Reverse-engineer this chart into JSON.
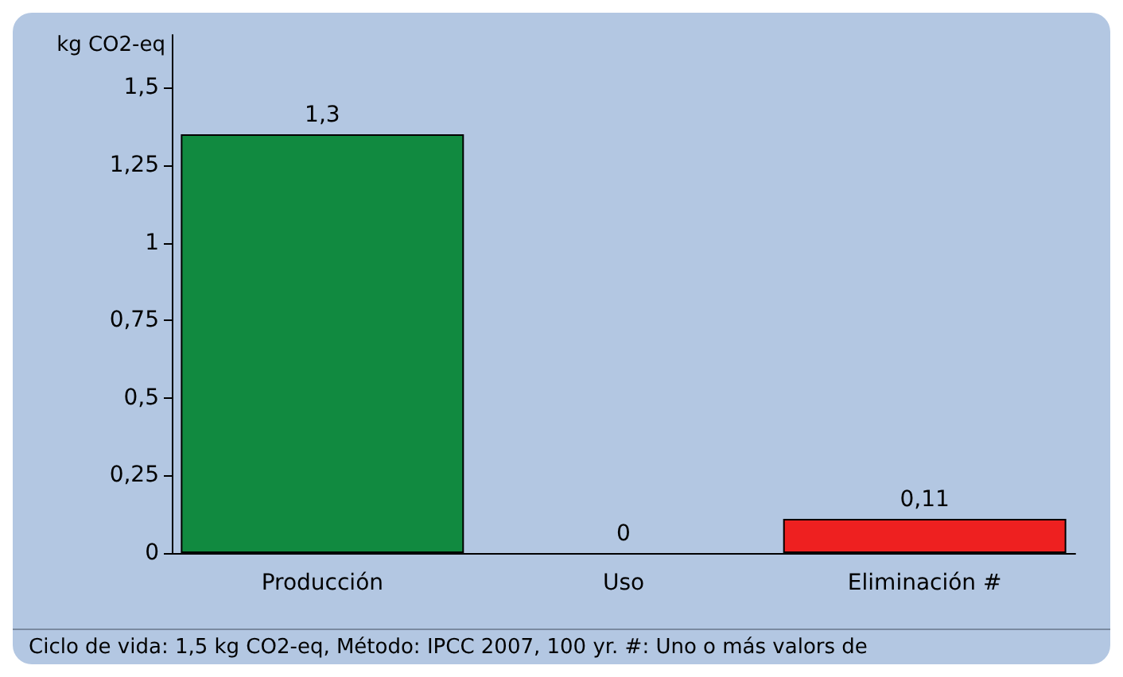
{
  "chart_data": {
    "type": "bar",
    "ylabel": "kg CO2-eq",
    "categories": [
      "Producción",
      "Uso",
      "Eliminación #"
    ],
    "values": [
      1.35,
      0,
      0.11
    ],
    "colors": [
      "#118a40",
      "#118a40",
      "#ee2020"
    ],
    "value_labels": [
      "1,3",
      "0",
      "0,11"
    ],
    "ylim": [
      0,
      1.67
    ],
    "yticks": [
      0,
      {
        "value": 0.25,
        "label": "0,25"
      },
      {
        "value": 0.5,
        "label": "0,5"
      },
      {
        "value": 0.75,
        "label": "0,75"
      },
      1,
      {
        "value": 1.25,
        "label": "1,25"
      },
      {
        "value": 1.5,
        "label": "1,5"
      }
    ],
    "grid": false,
    "annotations": [
      "Ciclo de vida: 1,5 kg CO2-eq, Método: IPCC 2007, 100 yr. #: Uno o más valors de"
    ]
  }
}
